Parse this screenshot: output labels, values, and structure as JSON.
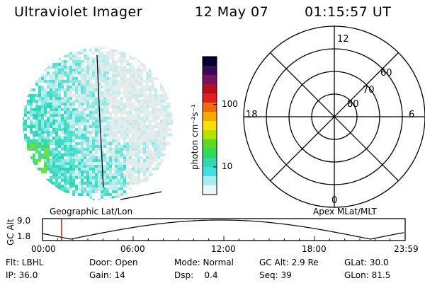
{
  "header": {
    "instrument": "Ultraviolet Imager",
    "date": "12 May 07",
    "time": "01:15:57 UT"
  },
  "colorbar": {
    "unit": "photon cm⁻²s⁻¹",
    "ticks": [
      "100",
      "10"
    ],
    "colors": [
      "#000033",
      "#3a0a5a",
      "#7a1060",
      "#b41020",
      "#e0201c",
      "#f06a10",
      "#f8a800",
      "#f8e000",
      "#b8e000",
      "#60d820",
      "#30d860",
      "#30d8b0",
      "#40e0e0",
      "#a8ecec",
      "#e8f8f8"
    ]
  },
  "polar_plot": {
    "clock_labels": [
      "12",
      "18",
      "6",
      "0"
    ],
    "lat_labels": [
      "60",
      "70",
      "80"
    ]
  },
  "map_labels": {
    "left": "Geographic Lat/Lon",
    "right": "Apex MLat/MLT"
  },
  "orbit_panel": {
    "ylabel": "GC Alt",
    "y_ticks": [
      "9.0",
      "1.8"
    ],
    "x_ticks": [
      "00:00",
      "06:00",
      "12:00",
      "18:00",
      "23:59"
    ]
  },
  "info": {
    "flt": "Flt: LBHL",
    "ip": "IP: 36.0",
    "door": "Door: Open",
    "gain": "Gain: 14",
    "mode": "Mode: Normal",
    "dsp": "Dsp:    0.4",
    "gcalt": "GC Alt: 2.9 Re",
    "seq": "Seq: 39",
    "glat": "GLat: 30.0",
    "glon": "GLon: 81.5"
  },
  "style": {
    "aurora_palette": [
      "#e4ecec",
      "#d8e8e8",
      "#b8eeee",
      "#8ee8e4",
      "#5ce0d4",
      "#40d8c8",
      "#2ed8b4",
      "#40d890",
      "#70e040"
    ],
    "marker_color": "#d01010"
  }
}
